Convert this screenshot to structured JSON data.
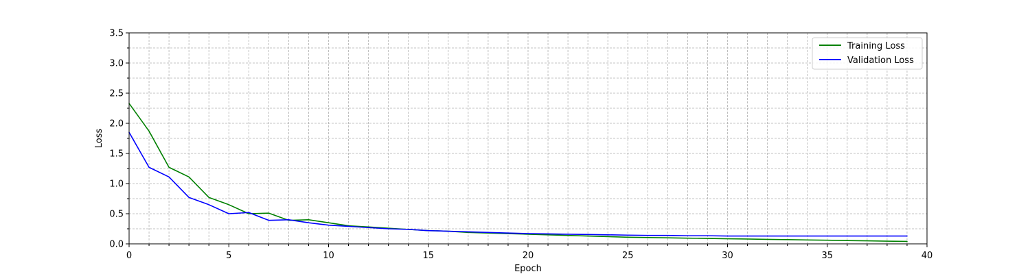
{
  "chart_data": {
    "type": "line",
    "title": "",
    "xlabel": "Epoch",
    "ylabel": "Loss",
    "xlim": [
      0,
      40
    ],
    "ylim": [
      0,
      3.5
    ],
    "x_ticks": [
      "0",
      "5",
      "10",
      "15",
      "20",
      "25",
      "30",
      "35",
      "40"
    ],
    "y_ticks": [
      "0.0",
      "0.5",
      "1.0",
      "1.5",
      "2.0",
      "2.5",
      "3.0",
      "3.5"
    ],
    "grid": true,
    "minor_grid": true,
    "legend_position": "top-right",
    "x": [
      0,
      1,
      2,
      3,
      4,
      5,
      6,
      7,
      8,
      9,
      10,
      11,
      12,
      13,
      14,
      15,
      16,
      17,
      18,
      19,
      20,
      21,
      22,
      23,
      24,
      25,
      26,
      27,
      28,
      29,
      30,
      31,
      32,
      33,
      34,
      35,
      36,
      37,
      38,
      39
    ],
    "series": [
      {
        "name": "Training Loss",
        "color": "#008000",
        "values": [
          2.33,
          1.87,
          1.27,
          1.11,
          0.77,
          0.65,
          0.5,
          0.51,
          0.39,
          0.4,
          0.35,
          0.3,
          0.28,
          0.26,
          0.24,
          0.22,
          0.21,
          0.19,
          0.18,
          0.17,
          0.16,
          0.15,
          0.14,
          0.13,
          0.12,
          0.11,
          0.105,
          0.1,
          0.095,
          0.09,
          0.085,
          0.08,
          0.075,
          0.07,
          0.065,
          0.06,
          0.055,
          0.05,
          0.045,
          0.04
        ]
      },
      {
        "name": "Validation Loss",
        "color": "#0000ff",
        "values": [
          1.85,
          1.27,
          1.11,
          0.77,
          0.65,
          0.5,
          0.52,
          0.39,
          0.4,
          0.35,
          0.31,
          0.29,
          0.27,
          0.25,
          0.24,
          0.22,
          0.21,
          0.2,
          0.19,
          0.18,
          0.17,
          0.165,
          0.16,
          0.155,
          0.15,
          0.145,
          0.14,
          0.14,
          0.135,
          0.135,
          0.13,
          0.13,
          0.13,
          0.13,
          0.13,
          0.13,
          0.13,
          0.13,
          0.13,
          0.13
        ]
      }
    ]
  }
}
